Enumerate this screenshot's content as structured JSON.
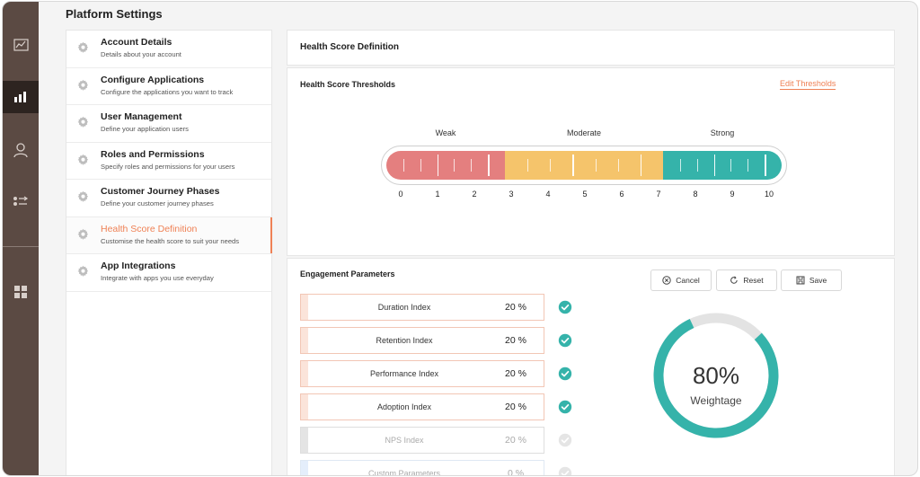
{
  "app": {
    "title": "Platform Settings"
  },
  "rail": {
    "icons": [
      "analytics-icon",
      "bar-chart-icon",
      "user-icon",
      "transfer-icon",
      "apps-grid-icon"
    ],
    "active": "bar-chart-icon",
    "background": "#5b4a43",
    "active_background": "#2d2420"
  },
  "menu": {
    "items": [
      {
        "title": "Account Details",
        "desc": "Details about your account"
      },
      {
        "title": "Configure Applications",
        "desc": "Configure the applications you want to track"
      },
      {
        "title": "User Management",
        "desc": "Define your application users"
      },
      {
        "title": "Roles and Permissions",
        "desc": "Specify roles and permissions for your users"
      },
      {
        "title": "Customer Journey Phases",
        "desc": "Define your customer journey phases"
      },
      {
        "title": "Health Score Definition",
        "desc": "Customise the health score to suit your needs"
      },
      {
        "title": "App Integrations",
        "desc": "Integrate with apps you use everyday"
      }
    ],
    "active_index": 5
  },
  "page": {
    "title": "Health Score Definition"
  },
  "thresholds": {
    "title": "Health Score Thresholds",
    "edit_label": "Edit Thresholds",
    "zones": [
      {
        "label": "Weak",
        "from": 0,
        "to": 3,
        "color": "#e47f7f"
      },
      {
        "label": "Moderate",
        "from": 3,
        "to": 7,
        "color": "#f5c46b"
      },
      {
        "label": "Strong",
        "from": 7,
        "to": 10,
        "color": "#35b3aa"
      }
    ],
    "scale": [
      "0",
      "1",
      "2",
      "3",
      "4",
      "5",
      "6",
      "7",
      "8",
      "9",
      "10"
    ]
  },
  "engagement": {
    "title": "Engagement Parameters",
    "buttons": {
      "cancel": "Cancel",
      "reset": "Reset",
      "save": "Save"
    },
    "params": [
      {
        "name": "Duration Index",
        "value": "20 %",
        "enabled": true
      },
      {
        "name": "Retention Index",
        "value": "20 %",
        "enabled": true
      },
      {
        "name": "Performance Index",
        "value": "20 %",
        "enabled": true
      },
      {
        "name": "Adoption Index",
        "value": "20 %",
        "enabled": true
      },
      {
        "name": "NPS Index",
        "value": "20 %",
        "enabled": false
      },
      {
        "name": "Custom Parameters",
        "value": "0 %",
        "enabled": false
      }
    ],
    "weightage": {
      "percent_label": "80%",
      "label": "Weightage",
      "fraction": 0.8,
      "color": "#35b3aa",
      "track_color": "#e3e3e3"
    }
  },
  "colors": {
    "accent": "#ef8155",
    "teal": "#35b3aa"
  }
}
